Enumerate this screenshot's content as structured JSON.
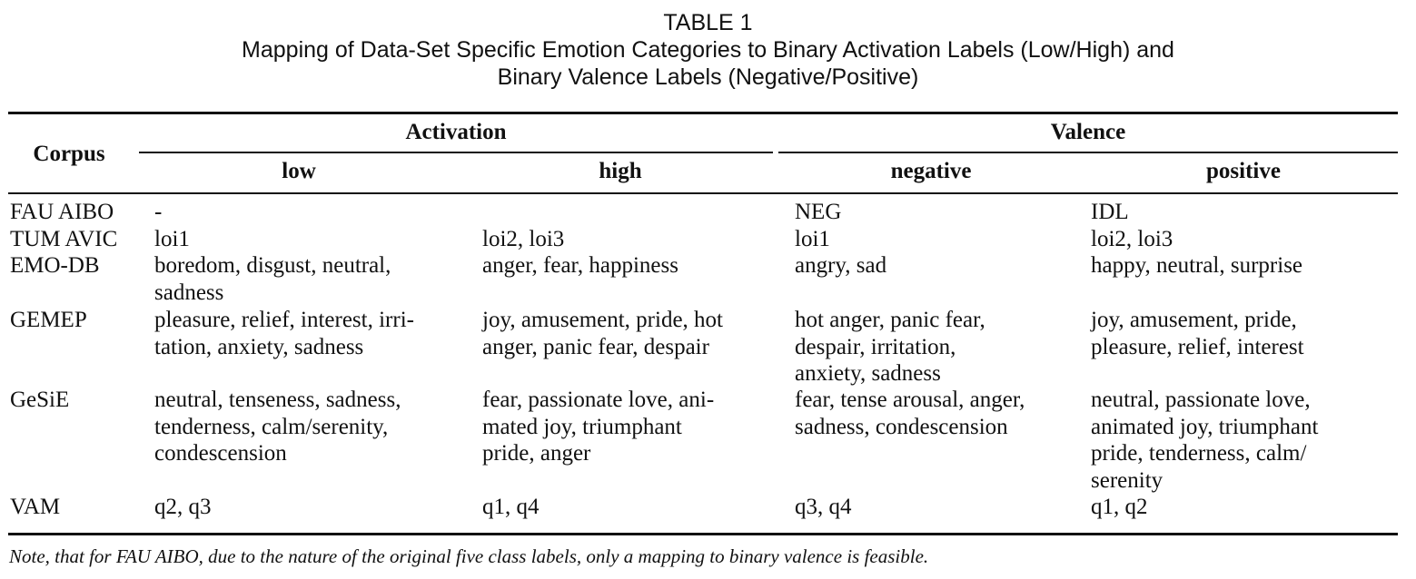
{
  "caption": {
    "label": "TABLE 1",
    "line1": "Mapping of Data-Set Specific Emotion Categories to Binary Activation Labels (Low/High) and",
    "line2": "Binary Valence Labels (Negative/Positive)"
  },
  "header": {
    "corpus": "Corpus",
    "activation": "Activation",
    "valence": "Valence",
    "low": "low",
    "high": "high",
    "negative": "negative",
    "positive": "positive"
  },
  "rows": [
    {
      "corpus": "FAU AIBO",
      "low": "-",
      "high": "",
      "negative": "NEG",
      "positive": "IDL"
    },
    {
      "corpus": "TUM AVIC",
      "low": "loi1",
      "high": "loi2, loi3",
      "negative": "loi1",
      "positive": "loi2, loi3"
    },
    {
      "corpus": "EMO-DB",
      "low": "boredom, disgust, neutral,\nsadness",
      "high": "anger, fear, happiness",
      "negative": "angry, sad",
      "positive": "happy, neutral, surprise"
    },
    {
      "corpus": "GEMEP",
      "low": "pleasure, relief, interest, irri-\ntation, anxiety, sadness",
      "high": "joy, amusement, pride, hot\nanger, panic fear, despair",
      "negative": "hot anger, panic fear,\ndespair, irritation,\nanxiety, sadness",
      "positive": "joy, amusement, pride,\npleasure, relief, interest"
    },
    {
      "corpus": "GeSiE",
      "low": "neutral, tenseness, sadness,\ntenderness, calm/serenity,\ncondescension",
      "high": "fear, passionate love, ani-\nmated joy, triumphant\npride, anger",
      "negative": "fear, tense arousal, anger,\nsadness, condescension",
      "positive": "neutral, passionate love,\nanimated joy, triumphant\npride, tenderness, calm/\nserenity"
    },
    {
      "corpus": "VAM",
      "low": "q2, q3",
      "high": "q1, q4",
      "negative": "q3, q4",
      "positive": "q1, q2"
    }
  ],
  "note": "Note, that for FAU AIBO, due to the nature of the original five class labels, only a mapping to binary valence is feasible."
}
